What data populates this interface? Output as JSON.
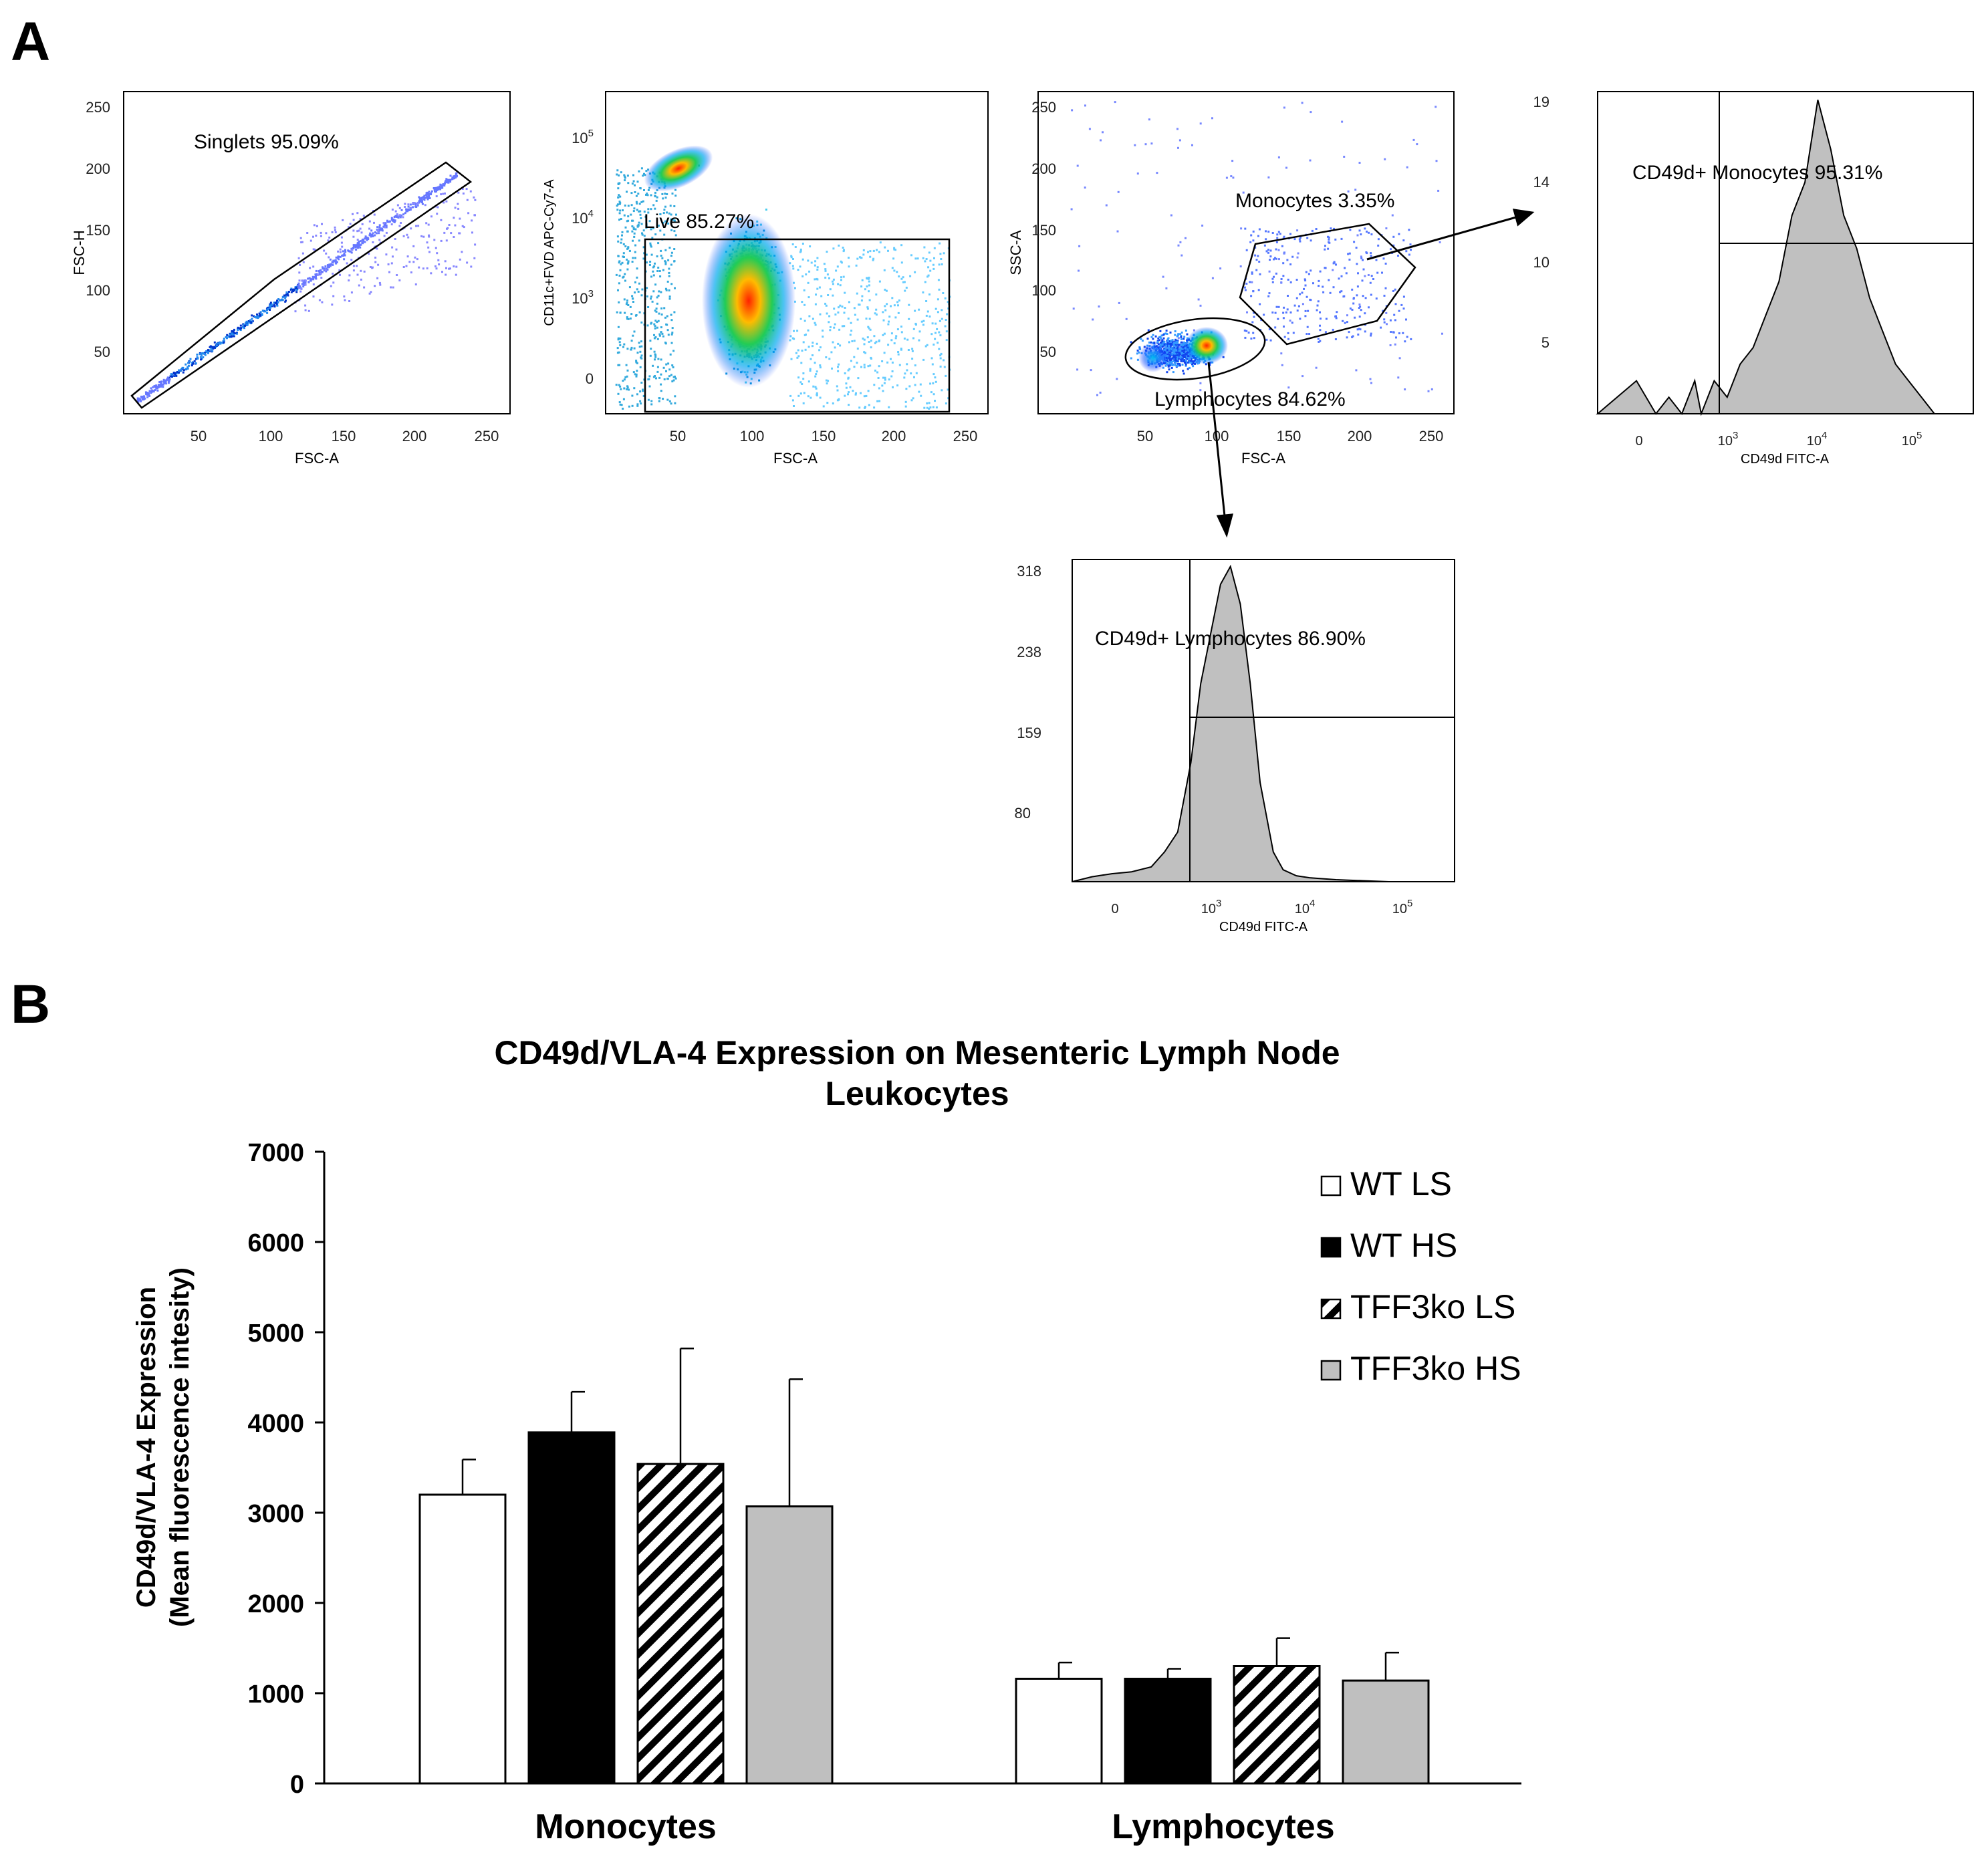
{
  "panel_labels": {
    "a": "A",
    "b": "B"
  },
  "chart_data": [
    {
      "type": "scatter",
      "panel": "A",
      "xlabel": "FSC-A",
      "ylabel": "FSC-H",
      "xticks": [
        "50",
        "100",
        "150",
        "200",
        "250"
      ],
      "yticks": [
        "50",
        "100",
        "150",
        "200",
        "250"
      ],
      "xlim": [
        0,
        260
      ],
      "ylim": [
        10,
        260
      ],
      "gate_label": "Singlets 95.09%",
      "gate": {
        "shape": "polygon",
        "vertices_data": [
          [
            5,
            15
          ],
          [
            100,
            112
          ],
          [
            220,
            208
          ],
          [
            237,
            190
          ],
          [
            12,
            8
          ]
        ]
      },
      "series": [
        {
          "distribution": "diagonal density FSC-A≈FSC-H, 20–240",
          "values": []
        }
      ]
    },
    {
      "type": "scatter",
      "panel": "A",
      "xlabel": "FSC-A",
      "ylabel": "CD11c+FVD APC-Cy7-A",
      "xticks": [
        "50",
        "100",
        "150",
        "200",
        "250"
      ],
      "yticks": [
        "0",
        "10^3",
        "10^4",
        "10^5"
      ],
      "gate_label": "Live 85.27%",
      "gate": {
        "shape": "rectangle",
        "x_range": [
          30,
          240
        ],
        "y_range": [
          -0.5,
          4.1
        ]
      },
      "series": []
    },
    {
      "type": "scatter",
      "panel": "A",
      "xlabel": "FSC-A",
      "ylabel": "SSC-A",
      "xticks": [
        "50",
        "100",
        "150",
        "200",
        "250"
      ],
      "yticks": [
        "50",
        "100",
        "150",
        "200",
        "250"
      ],
      "gates": [
        {
          "label": "Monocytes 3.35%",
          "shape": "polygon"
        },
        {
          "label": "Lymphocytes 84.62%",
          "shape": "ellipse"
        }
      ],
      "series": []
    },
    {
      "type": "area",
      "panel": "A",
      "xlabel": "CD49d FITC-A",
      "xticks": [
        "0",
        "10^3",
        "10^4",
        "10^5"
      ],
      "yticks": [
        "5",
        "10",
        "14",
        "19"
      ],
      "ylim": [
        0,
        19.5
      ],
      "gate_label": "CD49d+ Monocytes 95.31%",
      "x": [
        -0.6,
        0.0,
        0.3,
        0.5,
        0.7,
        0.9,
        1.0,
        1.2,
        1.4,
        1.6,
        1.8,
        2.0,
        2.2,
        2.4,
        2.6,
        2.8,
        3.0,
        3.2,
        3.4,
        3.6,
        3.8,
        4.0,
        4.2,
        4.4,
        4.6,
        4.8
      ],
      "y": [
        0,
        2,
        0,
        1,
        0,
        2,
        0,
        2,
        1,
        3,
        4,
        6,
        8,
        12,
        14,
        19,
        16,
        12,
        10,
        7,
        5,
        3,
        2,
        1,
        0,
        0
      ]
    },
    {
      "type": "area",
      "panel": "A",
      "xlabel": "CD49d FITC-A",
      "xticks": [
        "0",
        "10^3",
        "10^4",
        "10^5"
      ],
      "yticks": [
        "80",
        "159",
        "238",
        "318"
      ],
      "ylim": [
        0,
        325
      ],
      "gate_label": "CD49d+ Lymphocytes 86.90%",
      "x": [
        -0.6,
        -0.3,
        0.0,
        0.3,
        0.6,
        0.8,
        1.0,
        1.2,
        1.35,
        1.5,
        1.65,
        1.8,
        1.95,
        2.1,
        2.25,
        2.45,
        2.6,
        2.8,
        3.0,
        3.4,
        3.8,
        4.2,
        4.6,
        4.8
      ],
      "y": [
        0,
        5,
        8,
        10,
        15,
        30,
        50,
        120,
        200,
        250,
        300,
        318,
        280,
        200,
        100,
        30,
        12,
        6,
        4,
        2,
        1,
        0,
        0,
        0
      ]
    },
    {
      "type": "bar",
      "panel": "B",
      "title_lines": [
        "CD49d/VLA-4 Expression on Mesenteric Lymph Node",
        "Leukocytes"
      ],
      "ylabel_lines": [
        "CD49d/VLA-4 Expression",
        "(Mean fluorescence intesity)"
      ],
      "categories": [
        "Monocytes",
        "Lymphocytes"
      ],
      "ylim": [
        0,
        7000
      ],
      "yticks": [
        "0",
        "1000",
        "2000",
        "3000",
        "4000",
        "5000",
        "6000",
        "7000"
      ],
      "legend_position": "top-right",
      "series": [
        {
          "name": "WT LS",
          "fill": "#ffffff",
          "pattern": "none",
          "values": [
            3200,
            1160
          ],
          "errors": [
            390,
            180
          ]
        },
        {
          "name": "WT HS",
          "fill": "#000000",
          "pattern": "none",
          "values": [
            3890,
            1160
          ],
          "errors": [
            450,
            110
          ]
        },
        {
          "name": "TFF3ko LS",
          "fill": "#ffffff",
          "pattern": "diagonal-hatch",
          "values": [
            3540,
            1300
          ],
          "errors": [
            1280,
            310
          ]
        },
        {
          "name": "TFF3ko HS",
          "fill": "#bfbfbf",
          "pattern": "none",
          "values": [
            3070,
            1140
          ],
          "errors": [
            1410,
            310
          ]
        }
      ]
    }
  ]
}
